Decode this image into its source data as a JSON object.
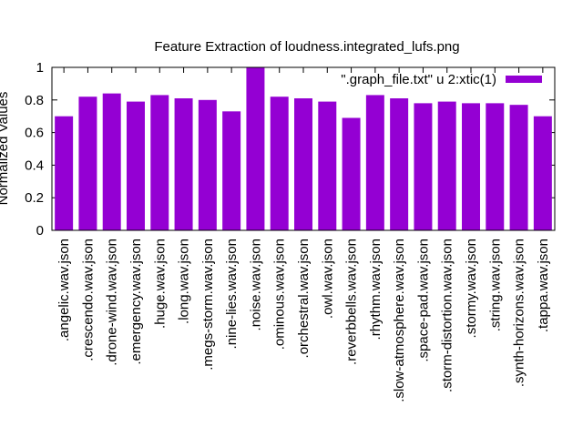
{
  "chart_data": {
    "type": "bar",
    "title": "Feature Extraction of loudness.integrated_lufs.png",
    "xlabel": "",
    "ylabel": "Normalized Values",
    "ylim": [
      0,
      1
    ],
    "yticks": [
      "0",
      "0.2",
      "0.4",
      "0.6",
      "0.8",
      "1"
    ],
    "legend": {
      "label": "\".graph_file.txt\" u 2:xtic(1)",
      "position": "top-right"
    },
    "bar_color": "#9400d3",
    "grid": false,
    "categories": [
      ".angelic.wav.json",
      ".crescendo.wav.json",
      ".drone-wind.wav.json",
      ".emergency.wav.json",
      ".huge.wav.json",
      ".long.wav.json",
      ".megs-storm.wav.json",
      ".nine-lies.wav.json",
      ".noise.wav.json",
      ".ominous.wav.json",
      ".orchestral.wav.json",
      ".owl.wav.json",
      ".reverbbells.wav.json",
      ".rhythm.wav.json",
      ".slow-atmosphere.wav.json",
      ".space-pad.wav.json",
      ".storm-distortion.wav.json",
      ".stormy.wav.json",
      ".string.wav.json",
      ".synth-horizons.wav.json",
      ".tappa.wav.json"
    ],
    "values": [
      0.7,
      0.82,
      0.84,
      0.79,
      0.83,
      0.81,
      0.8,
      0.73,
      1.0,
      0.82,
      0.81,
      0.79,
      0.69,
      0.83,
      0.81,
      0.78,
      0.79,
      0.78,
      0.78,
      0.77,
      0.7
    ]
  }
}
